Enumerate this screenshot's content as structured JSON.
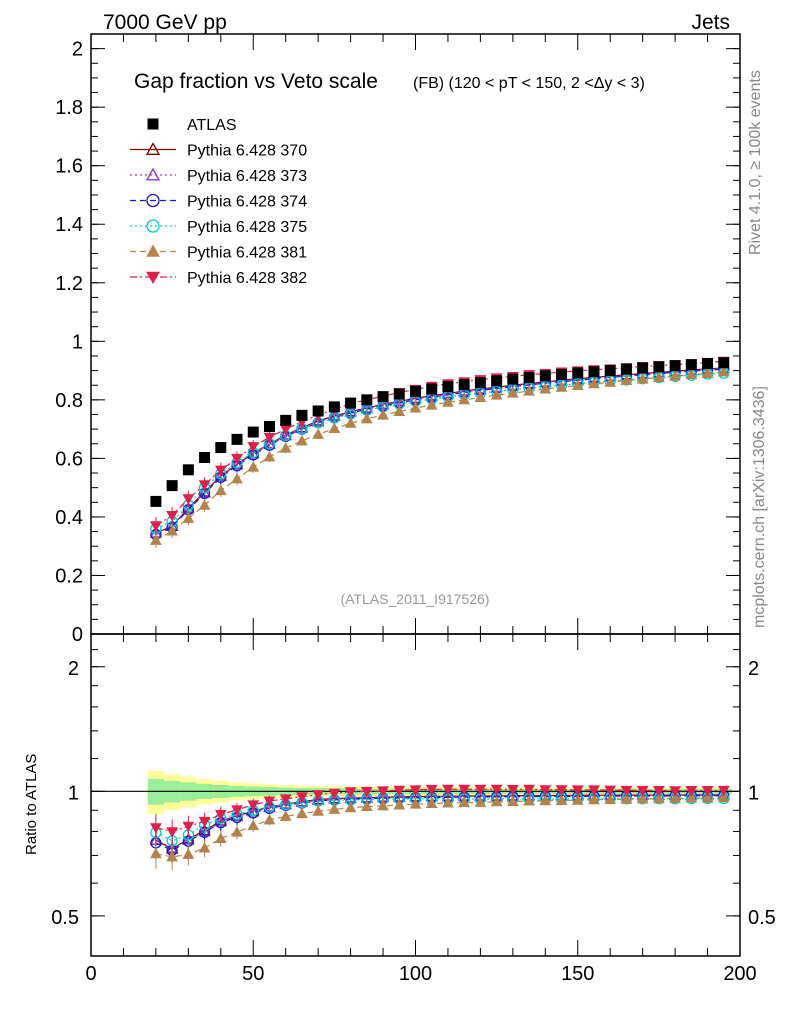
{
  "header": {
    "left": "7000 GeV pp",
    "right": "Jets"
  },
  "side_labels": {
    "rivet": "Rivet 4.1.0, ≥ 100k events",
    "mcplots": "mcplots.cern.ch [arXiv:1306.3436]"
  },
  "chart_data": {
    "type": "scatter",
    "title": "Gap fraction vs Veto scale",
    "subtitle": "(FB) (120 < pT < 150, 2 <Δy < 3)",
    "analysis_tag": "(ATLAS_2011_I917526)",
    "xlabel": "",
    "ylabel": "",
    "xlim": [
      0,
      200
    ],
    "ylim": [
      0,
      2.05
    ],
    "x_ticks": [
      "0",
      "50",
      "100",
      "150",
      "200"
    ],
    "y_ticks": [
      "0",
      "0.2",
      "0.4",
      "0.6",
      "0.8",
      "1",
      "1.2",
      "1.4",
      "1.6",
      "1.8",
      "2"
    ],
    "ratio": {
      "ylabel": "Ratio to ATLAS",
      "ylim": [
        0.4,
        2.4
      ],
      "scale": "log",
      "y_ticks": [
        "0.5",
        "1",
        "2"
      ],
      "y_ticks_right": [
        "0.5",
        "1",
        "2"
      ]
    },
    "x": [
      20,
      25,
      30,
      35,
      40,
      45,
      50,
      55,
      60,
      65,
      70,
      75,
      80,
      85,
      90,
      95,
      100,
      105,
      110,
      115,
      120,
      125,
      130,
      135,
      140,
      145,
      150,
      155,
      160,
      165,
      170,
      175,
      180,
      185,
      190,
      195
    ],
    "series": [
      {
        "name": "ATLAS",
        "color": "#000000",
        "marker": "square",
        "values": [
          0.453,
          0.507,
          0.561,
          0.603,
          0.637,
          0.665,
          0.69,
          0.709,
          0.73,
          0.747,
          0.762,
          0.776,
          0.789,
          0.8,
          0.811,
          0.82,
          0.829,
          0.837,
          0.845,
          0.852,
          0.859,
          0.865,
          0.871,
          0.876,
          0.882,
          0.887,
          0.892,
          0.896,
          0.9,
          0.905,
          0.909,
          0.913,
          0.917,
          0.92,
          0.924,
          0.927
        ]
      },
      {
        "name": "Pythia 6.428 370",
        "color": "#800000",
        "marker": "triangle-open",
        "line": "solid",
        "values": [
          0.345,
          0.368,
          0.43,
          0.485,
          0.54,
          0.58,
          0.618,
          0.65,
          0.68,
          0.705,
          0.728,
          0.745,
          0.76,
          0.772,
          0.785,
          0.795,
          0.805,
          0.814,
          0.822,
          0.83,
          0.837,
          0.843,
          0.85,
          0.856,
          0.861,
          0.867,
          0.872,
          0.877,
          0.881,
          0.886,
          0.89,
          0.894,
          0.898,
          0.902,
          0.906,
          0.909
        ]
      },
      {
        "name": "Pythia 6.428 373",
        "color": "#9933cc",
        "marker": "triangle-open",
        "line": "dotted",
        "values": [
          0.345,
          0.37,
          0.428,
          0.482,
          0.538,
          0.578,
          0.615,
          0.648,
          0.678,
          0.703,
          0.725,
          0.743,
          0.758,
          0.77,
          0.783,
          0.793,
          0.803,
          0.812,
          0.82,
          0.828,
          0.835,
          0.842,
          0.848,
          0.854,
          0.86,
          0.865,
          0.87,
          0.875,
          0.88,
          0.884,
          0.889,
          0.893,
          0.897,
          0.9,
          0.904,
          0.908
        ]
      },
      {
        "name": "Pythia 6.428 374",
        "color": "#1a1acc",
        "marker": "circle-open",
        "line": "dashed",
        "values": [
          0.34,
          0.365,
          0.425,
          0.48,
          0.535,
          0.575,
          0.612,
          0.645,
          0.675,
          0.7,
          0.722,
          0.74,
          0.755,
          0.768,
          0.78,
          0.79,
          0.8,
          0.809,
          0.817,
          0.825,
          0.832,
          0.839,
          0.845,
          0.851,
          0.857,
          0.862,
          0.867,
          0.872,
          0.877,
          0.881,
          0.886,
          0.89,
          0.894,
          0.898,
          0.901,
          0.905
        ]
      },
      {
        "name": "Pythia 6.428 375",
        "color": "#00cccc",
        "marker": "circle-open",
        "line": "dotted",
        "values": [
          0.36,
          0.385,
          0.44,
          0.5,
          0.548,
          0.585,
          0.62,
          0.65,
          0.678,
          0.702,
          0.722,
          0.738,
          0.752,
          0.765,
          0.776,
          0.786,
          0.795,
          0.803,
          0.81,
          0.817,
          0.823,
          0.829,
          0.835,
          0.84,
          0.845,
          0.85,
          0.855,
          0.86,
          0.864,
          0.868,
          0.872,
          0.876,
          0.88,
          0.884,
          0.888,
          0.891
        ]
      },
      {
        "name": "Pythia 6.428 381",
        "color": "#b5834a",
        "marker": "triangle-filled",
        "line": "dashed",
        "values": [
          0.32,
          0.352,
          0.395,
          0.44,
          0.49,
          0.53,
          0.57,
          0.605,
          0.635,
          0.66,
          0.682,
          0.702,
          0.72,
          0.735,
          0.748,
          0.76,
          0.772,
          0.782,
          0.792,
          0.8,
          0.808,
          0.816,
          0.823,
          0.83,
          0.837,
          0.843,
          0.849,
          0.855,
          0.86,
          0.866,
          0.871,
          0.876,
          0.881,
          0.886,
          0.89,
          0.895
        ]
      },
      {
        "name": "Pythia 6.428 382",
        "color": "#e0204a",
        "marker": "triangle-down-filled",
        "line": "dashdot",
        "values": [
          0.37,
          0.405,
          0.462,
          0.51,
          0.56,
          0.6,
          0.64,
          0.672,
          0.7,
          0.725,
          0.748,
          0.768,
          0.787,
          0.8,
          0.813,
          0.825,
          0.836,
          0.846,
          0.855,
          0.862,
          0.869,
          0.875,
          0.88,
          0.886,
          0.89,
          0.895,
          0.899,
          0.903,
          0.906,
          0.91,
          0.914,
          0.917,
          0.92,
          0.924,
          0.928,
          0.932
        ]
      }
    ],
    "atlas_error_band_fraction": [
      0.12,
      0.1,
      0.085,
      0.07,
      0.06,
      0.05,
      0.045,
      0.04,
      0.035,
      0.032,
      0.03,
      0.028,
      0.027,
      0.026,
      0.025,
      0.025,
      0.024,
      0.024,
      0.023,
      0.023,
      0.023,
      0.022,
      0.022,
      0.022,
      0.022,
      0.022,
      0.021,
      0.021,
      0.021,
      0.021,
      0.021,
      0.021,
      0.021,
      0.021,
      0.021,
      0.021
    ],
    "mc_error_fraction": [
      0.08,
      0.07,
      0.06,
      0.05,
      0.045,
      0.04,
      0.035,
      0.03,
      0.028,
      0.025,
      0.022,
      0.02,
      0.018,
      0.017,
      0.016,
      0.015,
      0.014,
      0.013,
      0.012,
      0.012,
      0.011,
      0.011,
      0.01,
      0.01,
      0.01,
      0.01,
      0.01,
      0.01,
      0.01,
      0.01,
      0.01,
      0.01,
      0.01,
      0.01,
      0.01,
      0.01
    ],
    "band_colors": {
      "inner": "#99ee99",
      "outer": "#ffff99"
    }
  }
}
